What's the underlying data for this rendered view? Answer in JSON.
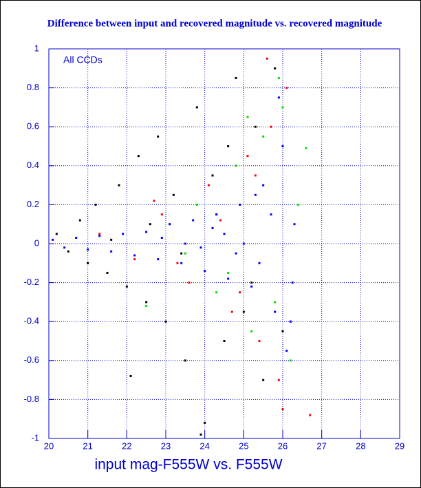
{
  "chart_data": {
    "type": "scatter",
    "title": "Difference between input and recovered magnitude vs. recovered magnitude",
    "xlabel": "input mag-F555W vs. F555W",
    "annotation": "All CCDs",
    "xlim": [
      20,
      29
    ],
    "ylim": [
      -1,
      1
    ],
    "xticks": [
      20,
      21,
      22,
      23,
      24,
      25,
      26,
      27,
      28,
      29
    ],
    "yticks": [
      -1,
      -0.8,
      -0.6,
      -0.4,
      -0.2,
      0,
      0.2,
      0.4,
      0.6,
      0.8,
      1
    ],
    "grid": true,
    "axis_color": "#0000cc",
    "series": [
      {
        "color": "#000000",
        "x": [
          20.2,
          20.5,
          20.8,
          21.0,
          21.2,
          21.5,
          21.8,
          22.0,
          22.3,
          22.5,
          22.8,
          23.0,
          23.2,
          23.5,
          23.8,
          24.0,
          24.3,
          24.5,
          24.8,
          25.0,
          25.3,
          25.5,
          25.8,
          26.0,
          21.6,
          22.6,
          23.4,
          24.2,
          25.2,
          23.9,
          24.6,
          22.1
        ],
        "y": [
          0.05,
          -0.04,
          0.12,
          -0.1,
          0.2,
          -0.15,
          0.3,
          -0.22,
          0.45,
          -0.3,
          0.55,
          -0.4,
          0.25,
          -0.6,
          0.7,
          -0.92,
          0.15,
          -0.5,
          0.85,
          -0.35,
          0.6,
          -0.7,
          0.9,
          -0.45,
          0.02,
          0.1,
          -0.05,
          0.35,
          -0.2,
          -0.98,
          0.5,
          -0.68
        ]
      },
      {
        "color": "#ff0000",
        "x": [
          21.3,
          22.2,
          22.9,
          23.6,
          24.1,
          24.7,
          25.1,
          25.4,
          25.7,
          25.9,
          26.1,
          26.2,
          24.4,
          23.3,
          25.6,
          26.0,
          22.7,
          24.9,
          25.3,
          26.7
        ],
        "y": [
          0.05,
          -0.08,
          0.15,
          -0.2,
          0.3,
          -0.35,
          0.45,
          -0.5,
          0.6,
          -0.7,
          0.8,
          -0.4,
          0.12,
          -0.1,
          0.95,
          -0.85,
          0.22,
          -0.25,
          0.35,
          -0.88
        ]
      },
      {
        "color": "#00dd00",
        "x": [
          22.5,
          23.1,
          23.8,
          24.3,
          24.8,
          25.2,
          25.5,
          25.8,
          26.0,
          26.2,
          26.4,
          24.6,
          25.9,
          26.6,
          23.5,
          25.1
        ],
        "y": [
          -0.32,
          0.1,
          0.2,
          -0.25,
          0.4,
          -0.45,
          0.55,
          -0.3,
          0.7,
          -0.6,
          0.2,
          -0.15,
          0.85,
          0.49,
          -0.05,
          0.65
        ]
      },
      {
        "color": "#0000ff",
        "x": [
          20.1,
          20.4,
          20.7,
          21.0,
          21.3,
          21.6,
          21.9,
          22.2,
          22.5,
          22.8,
          23.1,
          23.4,
          23.7,
          24.0,
          24.3,
          24.6,
          24.9,
          25.2,
          25.5,
          25.8,
          26.0,
          26.2,
          26.3,
          25.0,
          24.5,
          23.9,
          25.4,
          25.7,
          26.1,
          24.2,
          23.5,
          22.9,
          25.9,
          26.25,
          25.3,
          24.8
        ],
        "y": [
          0.02,
          -0.02,
          0.03,
          -0.03,
          0.04,
          -0.04,
          0.05,
          -0.06,
          0.06,
          -0.08,
          0.1,
          -0.1,
          0.12,
          -0.14,
          0.15,
          -0.18,
          0.2,
          -0.22,
          0.3,
          -0.35,
          0.5,
          -0.4,
          0.1,
          0.0,
          0.05,
          -0.02,
          -0.1,
          0.15,
          -0.55,
          0.08,
          0.0,
          0.03,
          0.75,
          -0.2,
          0.25,
          -0.05
        ]
      }
    ]
  }
}
